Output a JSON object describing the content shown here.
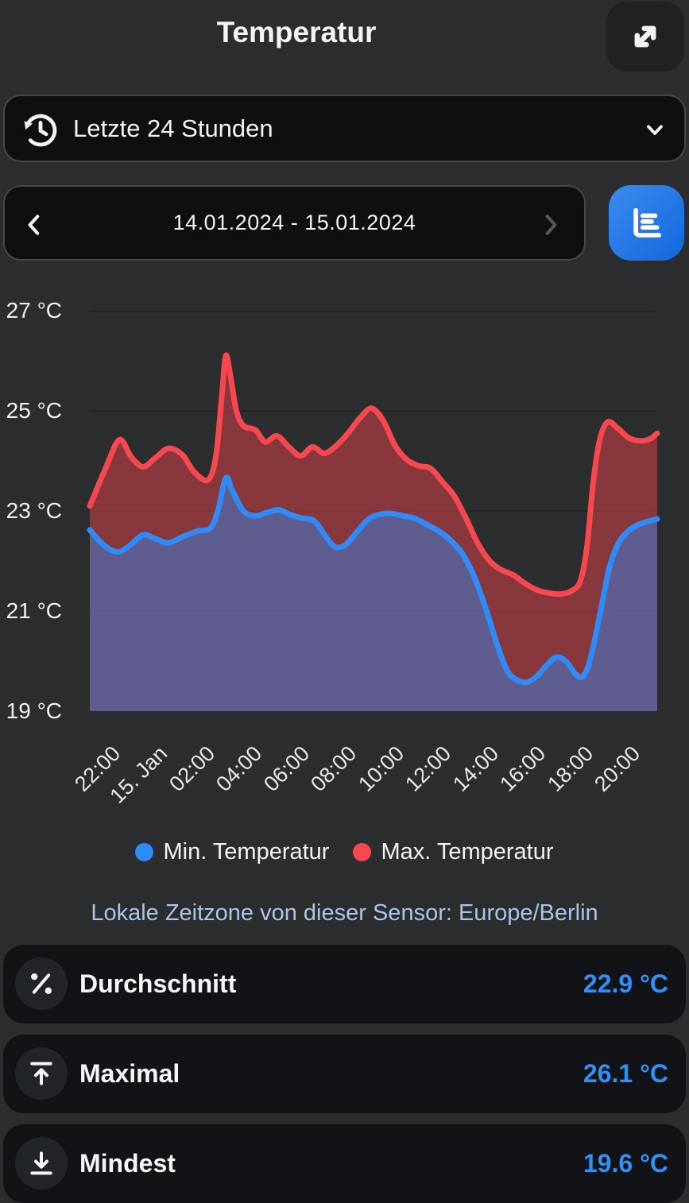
{
  "header": {
    "title": "Temperatur"
  },
  "controls": {
    "period_label": "Letzte 24 Stunden",
    "date_range": "14.01.2024 - 15.01.2024"
  },
  "chart_data": {
    "type": "area",
    "y_ticks": [
      "27 °C",
      "25 °C",
      "23 °C",
      "21 °C",
      "19 °C"
    ],
    "ylim": [
      19,
      27
    ],
    "grid": true,
    "legend_position": "bottom",
    "x_ticks": [
      "22:00",
      "15. Jan",
      "02:00",
      "04:00",
      "06:00",
      "08:00",
      "10:00",
      "12:00",
      "14:00",
      "16:00",
      "18:00",
      "20:00"
    ],
    "x_tick_minutes": [
      50,
      170,
      290,
      410,
      530,
      650,
      770,
      890,
      1010,
      1130,
      1250,
      1370
    ],
    "x_total_minutes": 1440,
    "series": [
      {
        "name": "Min. Temperatur",
        "color": "#2f8bf5",
        "fill_opacity": 0.45,
        "points": [
          [
            0,
            22.62
          ],
          [
            35,
            22.32
          ],
          [
            70,
            22.18
          ],
          [
            100,
            22.3
          ],
          [
            135,
            22.52
          ],
          [
            165,
            22.45
          ],
          [
            200,
            22.36
          ],
          [
            240,
            22.5
          ],
          [
            275,
            22.6
          ],
          [
            305,
            22.65
          ],
          [
            325,
            23.0
          ],
          [
            345,
            23.66
          ],
          [
            362,
            23.4
          ],
          [
            390,
            23.0
          ],
          [
            420,
            22.9
          ],
          [
            450,
            22.97
          ],
          [
            480,
            23.02
          ],
          [
            510,
            22.92
          ],
          [
            540,
            22.85
          ],
          [
            570,
            22.8
          ],
          [
            598,
            22.5
          ],
          [
            622,
            22.28
          ],
          [
            648,
            22.32
          ],
          [
            675,
            22.55
          ],
          [
            705,
            22.82
          ],
          [
            735,
            22.93
          ],
          [
            765,
            22.95
          ],
          [
            795,
            22.9
          ],
          [
            825,
            22.85
          ],
          [
            855,
            22.73
          ],
          [
            885,
            22.6
          ],
          [
            915,
            22.42
          ],
          [
            945,
            22.15
          ],
          [
            975,
            21.7
          ],
          [
            1005,
            21.05
          ],
          [
            1035,
            20.3
          ],
          [
            1060,
            19.8
          ],
          [
            1085,
            19.62
          ],
          [
            1110,
            19.58
          ],
          [
            1135,
            19.7
          ],
          [
            1160,
            19.92
          ],
          [
            1185,
            20.08
          ],
          [
            1210,
            19.98
          ],
          [
            1232,
            19.75
          ],
          [
            1248,
            19.68
          ],
          [
            1265,
            19.9
          ],
          [
            1282,
            20.45
          ],
          [
            1300,
            21.15
          ],
          [
            1318,
            21.85
          ],
          [
            1338,
            22.3
          ],
          [
            1360,
            22.55
          ],
          [
            1385,
            22.7
          ],
          [
            1412,
            22.78
          ],
          [
            1440,
            22.84
          ]
        ]
      },
      {
        "name": "Max. Temperatur",
        "color": "#f8484f",
        "fill_opacity": 0.45,
        "points": [
          [
            0,
            23.1
          ],
          [
            40,
            23.85
          ],
          [
            75,
            24.42
          ],
          [
            105,
            24.08
          ],
          [
            135,
            23.88
          ],
          [
            165,
            24.05
          ],
          [
            200,
            24.25
          ],
          [
            235,
            24.12
          ],
          [
            265,
            23.78
          ],
          [
            300,
            23.62
          ],
          [
            320,
            24.1
          ],
          [
            335,
            25.3
          ],
          [
            345,
            26.1
          ],
          [
            357,
            25.7
          ],
          [
            372,
            25.0
          ],
          [
            390,
            24.7
          ],
          [
            420,
            24.62
          ],
          [
            445,
            24.38
          ],
          [
            475,
            24.5
          ],
          [
            505,
            24.28
          ],
          [
            535,
            24.1
          ],
          [
            565,
            24.28
          ],
          [
            595,
            24.15
          ],
          [
            625,
            24.3
          ],
          [
            655,
            24.55
          ],
          [
            685,
            24.85
          ],
          [
            715,
            25.05
          ],
          [
            745,
            24.8
          ],
          [
            775,
            24.3
          ],
          [
            805,
            24.02
          ],
          [
            835,
            23.9
          ],
          [
            865,
            23.85
          ],
          [
            895,
            23.58
          ],
          [
            925,
            23.3
          ],
          [
            955,
            22.85
          ],
          [
            985,
            22.35
          ],
          [
            1015,
            22.0
          ],
          [
            1045,
            21.82
          ],
          [
            1075,
            21.72
          ],
          [
            1105,
            21.55
          ],
          [
            1135,
            21.42
          ],
          [
            1165,
            21.36
          ],
          [
            1195,
            21.34
          ],
          [
            1222,
            21.4
          ],
          [
            1245,
            21.6
          ],
          [
            1262,
            22.3
          ],
          [
            1278,
            23.6
          ],
          [
            1295,
            24.45
          ],
          [
            1315,
            24.78
          ],
          [
            1340,
            24.65
          ],
          [
            1370,
            24.45
          ],
          [
            1400,
            24.4
          ],
          [
            1422,
            24.44
          ],
          [
            1440,
            24.55
          ]
        ]
      }
    ]
  },
  "timezone_note": "Lokale Zeitzone von dieser Sensor: Europe/Berlin",
  "stats": [
    {
      "icon": "percent-icon",
      "label": "Durchschnitt",
      "value": "22.9 °C"
    },
    {
      "icon": "arrow-up-to-line-icon",
      "label": "Maximal",
      "value": "26.1 °C"
    },
    {
      "icon": "arrow-down-to-line-icon",
      "label": "Mindest",
      "value": "19.6 °C"
    }
  ],
  "colors": {
    "background": "#2c2d2f",
    "card": "#0e0f11",
    "accent_blue": "#2f8bf5",
    "value_blue": "#3090f7",
    "red": "#f8484f",
    "timezone_text": "#a9c6e8",
    "gridline": "#232528"
  }
}
